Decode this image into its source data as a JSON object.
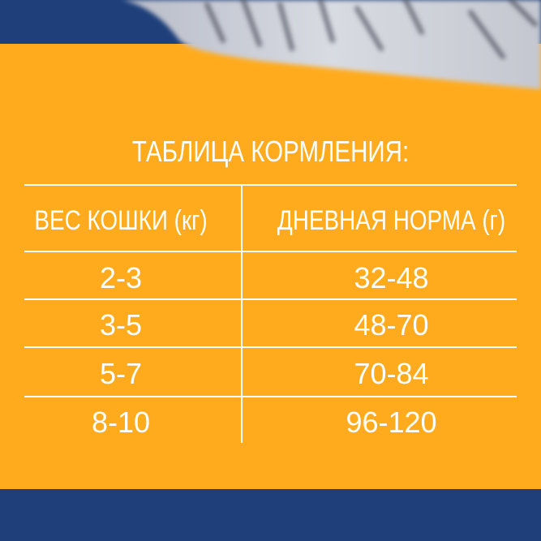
{
  "colors": {
    "blue": "#1e3f7a",
    "orange": "#ffab1d",
    "text": "#ffffff"
  },
  "image": "cat-fur-photo",
  "table": {
    "title": "ТАБЛИЦА КОРМЛЕНИЯ:",
    "headers": [
      "ВЕС КОШКИ (кг)",
      "ДНЕВНАЯ НОРМА (г)"
    ],
    "rows": [
      [
        "2-3",
        "32-48"
      ],
      [
        "3-5",
        "48-70"
      ],
      [
        "5-7",
        "70-84"
      ],
      [
        "8-10",
        "96-120"
      ]
    ]
  }
}
